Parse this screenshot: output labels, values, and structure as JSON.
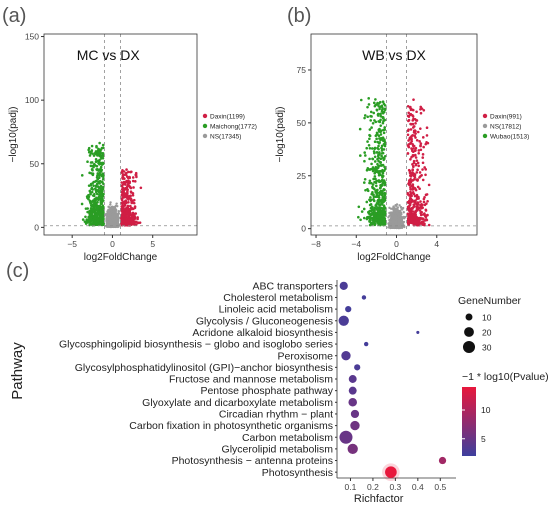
{
  "panels": {
    "a": {
      "letter": "(a)"
    },
    "b": {
      "letter": "(b)"
    },
    "c": {
      "letter": "(c)"
    }
  },
  "colors": {
    "up": "#d01f45",
    "down": "#2a9d24",
    "ns": "#9a9a9a",
    "threshold": "#8a8a8a"
  },
  "chart_data": [
    {
      "type": "scatter",
      "title": "MC vs DX",
      "xlabel": "log2FoldChange",
      "ylabel": "−log10(padj)",
      "xlim": [
        -8.5,
        10.5
      ],
      "ylim": [
        -6,
        152
      ],
      "xticks": [
        -5,
        0,
        5
      ],
      "yticks": [
        0,
        50,
        100,
        150
      ],
      "thresholds": {
        "x": [
          -1,
          1
        ],
        "y": 1.3
      },
      "grid": false,
      "legend_position": "right",
      "series": [
        {
          "name": "Daxin(1199)",
          "color": "#d01f45",
          "category": "up"
        },
        {
          "name": "Maichong(1772)",
          "color": "#2a9d24",
          "category": "down"
        },
        {
          "name": "NS(17345)",
          "color": "#9a9a9a",
          "category": "ns"
        }
      ]
    },
    {
      "type": "scatter",
      "title": "WB vs DX",
      "xlabel": "log2FoldChange",
      "ylabel": "−log10(padj)",
      "xlim": [
        -8.5,
        8
      ],
      "ylim": [
        -3,
        92
      ],
      "xticks": [
        -8,
        -4,
        0,
        4
      ],
      "yticks": [
        0,
        25,
        50,
        75
      ],
      "thresholds": {
        "x": [
          -1,
          1
        ],
        "y": 1.3
      },
      "grid": false,
      "legend_position": "right",
      "series": [
        {
          "name": "Daxin(991)",
          "color": "#d01f45",
          "category": "up"
        },
        {
          "name": "NS(17812)",
          "color": "#9a9a9a",
          "category": "ns"
        },
        {
          "name": "Wubao(1513)",
          "color": "#2a9d24",
          "category": "down"
        }
      ]
    },
    {
      "type": "scatter",
      "subtype": "bubble",
      "xlabel": "Richfactor",
      "ylabel": "Pathway",
      "xlim": [
        0.04,
        0.57
      ],
      "xticks": [
        0.1,
        0.2,
        0.3,
        0.4,
        0.5
      ],
      "size_legend": {
        "title": "GeneNumber",
        "values": [
          10,
          20,
          30
        ]
      },
      "color_legend": {
        "title": "−1 * log10(Pvalue)",
        "ticks": [
          5,
          10
        ],
        "range": [
          2,
          14
        ],
        "low_color": "#3d3f9e",
        "high_color": "#e8173c"
      },
      "grid": false,
      "categories": [
        "ABC transporters",
        "Cholesterol metabolism",
        "Linoleic acid metabolism",
        "Glycolysis / Gluconeogenesis",
        "Acridone alkaloid biosynthesis",
        "Glycosphingolipid biosynthesis − globo and isoglobo series",
        "Peroxisome",
        "Glycosylphosphatidylinositol (GPI)−anchor biosynthesis",
        "Fructose and mannose metabolism",
        "Pentose phosphate pathway",
        "Glyoxylate and dicarboxylate metabolism",
        "Circadian rhythm − plant",
        "Carbon fixation in photosynthetic organisms",
        "Carbon metabolism",
        "Glycerolipid metabolism",
        "Photosynthesis − antenna proteins",
        "Photosynthesis"
      ],
      "points": [
        {
          "pathway": "ABC transporters",
          "richfactor": 0.07,
          "gene_number": 14,
          "neglog10p": 3
        },
        {
          "pathway": "Cholesterol metabolism",
          "richfactor": 0.16,
          "gene_number": 4,
          "neglog10p": 2.5
        },
        {
          "pathway": "Linoleic acid metabolism",
          "richfactor": 0.09,
          "gene_number": 8,
          "neglog10p": 2.5
        },
        {
          "pathway": "Glycolysis / Gluconeogenesis",
          "richfactor": 0.07,
          "gene_number": 22,
          "neglog10p": 3
        },
        {
          "pathway": "Acridone alkaloid biosynthesis",
          "richfactor": 0.4,
          "gene_number": 2,
          "neglog10p": 2.5
        },
        {
          "pathway": "Glycosphingolipid biosynthesis − globo and isoglobo series",
          "richfactor": 0.17,
          "gene_number": 4,
          "neglog10p": 2.5
        },
        {
          "pathway": "Peroxisome",
          "richfactor": 0.08,
          "gene_number": 18,
          "neglog10p": 3.5
        },
        {
          "pathway": "Glycosylphosphatidylinositol (GPI)−anchor biosynthesis",
          "richfactor": 0.13,
          "gene_number": 8,
          "neglog10p": 3
        },
        {
          "pathway": "Fructose and mannose metabolism",
          "richfactor": 0.11,
          "gene_number": 13,
          "neglog10p": 4
        },
        {
          "pathway": "Pentose phosphate pathway",
          "richfactor": 0.11,
          "gene_number": 13,
          "neglog10p": 4
        },
        {
          "pathway": "Glyoxylate and dicarboxylate metabolism",
          "richfactor": 0.11,
          "gene_number": 15,
          "neglog10p": 5
        },
        {
          "pathway": "Circadian rhythm − plant",
          "richfactor": 0.12,
          "gene_number": 14,
          "neglog10p": 5
        },
        {
          "pathway": "Carbon fixation in photosynthetic organisms",
          "richfactor": 0.12,
          "gene_number": 18,
          "neglog10p": 5.5
        },
        {
          "pathway": "Carbon metabolism",
          "richfactor": 0.08,
          "gene_number": 35,
          "neglog10p": 5
        },
        {
          "pathway": "Glycerolipid metabolism",
          "richfactor": 0.11,
          "gene_number": 22,
          "neglog10p": 6
        },
        {
          "pathway": "Photosynthesis − antenna proteins",
          "richfactor": 0.51,
          "gene_number": 11,
          "neglog10p": 9
        },
        {
          "pathway": "Photosynthesis",
          "richfactor": 0.28,
          "gene_number": 28,
          "neglog10p": 14
        }
      ]
    }
  ]
}
